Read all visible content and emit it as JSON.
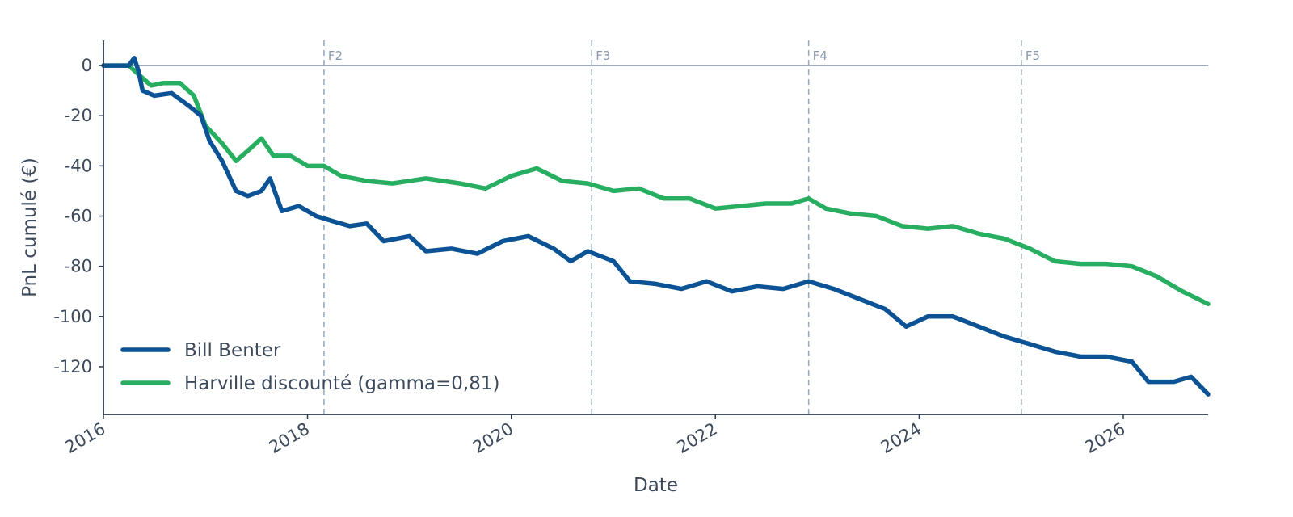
{
  "chart_data": {
    "type": "line",
    "title": "",
    "xlabel": "Date",
    "ylabel": "PnL cumulé (€)",
    "x_ticks": [
      "2016",
      "2018",
      "2020",
      "2022",
      "2024",
      "2026"
    ],
    "y_ticks": [
      0,
      -20,
      -40,
      -60,
      -80,
      -100,
      -120
    ],
    "xlim": [
      "2016-01-01",
      "2026-11-01"
    ],
    "ylim": [
      -139,
      10
    ],
    "grid": false,
    "legend_position": "bottom-left",
    "zero_line": true,
    "vertical_markers": [
      {
        "label": "F2",
        "x": "2018-03-01"
      },
      {
        "label": "F3",
        "x": "2020-10-15"
      },
      {
        "label": "F4",
        "x": "2022-12-01"
      },
      {
        "label": "F5",
        "x": "2025-01-01"
      }
    ],
    "series": [
      {
        "name": "Bill Benter",
        "color": "#0b5394",
        "points": [
          [
            "2016-01-01",
            0
          ],
          [
            "2016-04-01",
            0
          ],
          [
            "2016-04-20",
            3
          ],
          [
            "2016-05-05",
            -2
          ],
          [
            "2016-05-20",
            -10
          ],
          [
            "2016-07-01",
            -12
          ],
          [
            "2016-09-01",
            -11
          ],
          [
            "2016-11-01",
            -16
          ],
          [
            "2016-12-15",
            -20
          ],
          [
            "2017-01-15",
            -30
          ],
          [
            "2017-03-01",
            -38
          ],
          [
            "2017-04-20",
            -50
          ],
          [
            "2017-06-01",
            -52
          ],
          [
            "2017-07-20",
            -50
          ],
          [
            "2017-08-20",
            -45
          ],
          [
            "2017-10-01",
            -58
          ],
          [
            "2017-12-01",
            -56
          ],
          [
            "2018-02-01",
            -60
          ],
          [
            "2018-04-01",
            -62
          ],
          [
            "2018-06-01",
            -64
          ],
          [
            "2018-08-01",
            -63
          ],
          [
            "2018-10-01",
            -70
          ],
          [
            "2019-01-01",
            -68
          ],
          [
            "2019-03-01",
            -74
          ],
          [
            "2019-06-01",
            -73
          ],
          [
            "2019-09-01",
            -75
          ],
          [
            "2019-12-01",
            -70
          ],
          [
            "2020-03-01",
            -68
          ],
          [
            "2020-06-01",
            -73
          ],
          [
            "2020-08-01",
            -78
          ],
          [
            "2020-10-01",
            -74
          ],
          [
            "2021-01-01",
            -78
          ],
          [
            "2021-03-01",
            -86
          ],
          [
            "2021-06-01",
            -87
          ],
          [
            "2021-09-01",
            -89
          ],
          [
            "2021-12-01",
            -86
          ],
          [
            "2022-03-01",
            -90
          ],
          [
            "2022-06-01",
            -88
          ],
          [
            "2022-09-01",
            -89
          ],
          [
            "2022-12-01",
            -86
          ],
          [
            "2023-03-01",
            -89
          ],
          [
            "2023-06-01",
            -93
          ],
          [
            "2023-09-01",
            -97
          ],
          [
            "2023-11-15",
            -104
          ],
          [
            "2024-02-01",
            -100
          ],
          [
            "2024-05-01",
            -100
          ],
          [
            "2024-08-01",
            -104
          ],
          [
            "2024-11-01",
            -108
          ],
          [
            "2025-02-01",
            -111
          ],
          [
            "2025-05-01",
            -114
          ],
          [
            "2025-08-01",
            -116
          ],
          [
            "2025-11-01",
            -116
          ],
          [
            "2026-02-01",
            -118
          ],
          [
            "2026-04-01",
            -126
          ],
          [
            "2026-07-01",
            -126
          ],
          [
            "2026-09-01",
            -124
          ],
          [
            "2026-11-01",
            -131
          ]
        ]
      },
      {
        "name": "Harville discounté (gamma=0,81)",
        "color": "#27ae60",
        "points": [
          [
            "2016-01-01",
            0
          ],
          [
            "2016-04-01",
            0
          ],
          [
            "2016-05-10",
            -4
          ],
          [
            "2016-06-20",
            -8
          ],
          [
            "2016-08-01",
            -7
          ],
          [
            "2016-10-01",
            -7
          ],
          [
            "2016-11-20",
            -12
          ],
          [
            "2017-01-01",
            -24
          ],
          [
            "2017-03-01",
            -31
          ],
          [
            "2017-04-20",
            -38
          ],
          [
            "2017-06-01",
            -34
          ],
          [
            "2017-07-20",
            -29
          ],
          [
            "2017-09-01",
            -36
          ],
          [
            "2017-11-01",
            -36
          ],
          [
            "2018-01-01",
            -40
          ],
          [
            "2018-03-01",
            -40
          ],
          [
            "2018-05-01",
            -44
          ],
          [
            "2018-08-01",
            -46
          ],
          [
            "2018-11-01",
            -47
          ],
          [
            "2019-03-01",
            -45
          ],
          [
            "2019-07-01",
            -47
          ],
          [
            "2019-10-01",
            -49
          ],
          [
            "2020-01-01",
            -44
          ],
          [
            "2020-04-01",
            -41
          ],
          [
            "2020-07-01",
            -46
          ],
          [
            "2020-10-01",
            -47
          ],
          [
            "2021-01-01",
            -50
          ],
          [
            "2021-04-01",
            -49
          ],
          [
            "2021-07-01",
            -53
          ],
          [
            "2021-10-01",
            -53
          ],
          [
            "2022-01-01",
            -57
          ],
          [
            "2022-04-01",
            -56
          ],
          [
            "2022-07-01",
            -55
          ],
          [
            "2022-10-01",
            -55
          ],
          [
            "2022-12-01",
            -53
          ],
          [
            "2023-02-01",
            -57
          ],
          [
            "2023-05-01",
            -59
          ],
          [
            "2023-08-01",
            -60
          ],
          [
            "2023-11-01",
            -64
          ],
          [
            "2024-02-01",
            -65
          ],
          [
            "2024-05-01",
            -64
          ],
          [
            "2024-08-01",
            -67
          ],
          [
            "2024-11-01",
            -69
          ],
          [
            "2025-02-01",
            -73
          ],
          [
            "2025-05-01",
            -78
          ],
          [
            "2025-08-01",
            -79
          ],
          [
            "2025-11-01",
            -79
          ],
          [
            "2026-02-01",
            -80
          ],
          [
            "2026-05-01",
            -84
          ],
          [
            "2026-08-01",
            -90
          ],
          [
            "2026-11-01",
            -95
          ]
        ]
      }
    ]
  }
}
